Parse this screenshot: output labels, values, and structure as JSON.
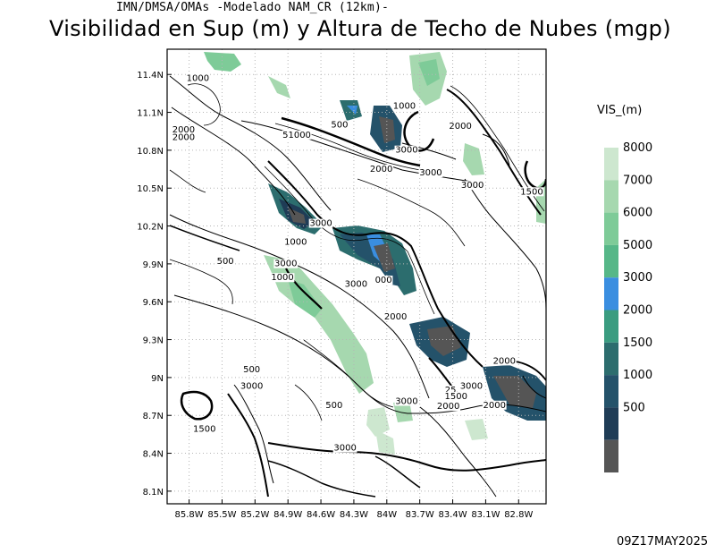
{
  "header": {
    "source_line": "IMN/DMSA/OMAs -Modelado NAM_CR (12km)-",
    "title": "Visibilidad en Sup (m) y Altura de Techo de Nubes (mgp)"
  },
  "legend": {
    "title": "VIS_(m)",
    "levels": [
      {
        "label": "8000",
        "color": "#cde7cf"
      },
      {
        "label": "7000",
        "color": "#a6d8af"
      },
      {
        "label": "6000",
        "color": "#7ecb98"
      },
      {
        "label": "5000",
        "color": "#56b788"
      },
      {
        "label": "3000",
        "color": "#3a8ee0"
      },
      {
        "label": "2000",
        "color": "#3a9c80"
      },
      {
        "label": "1500",
        "color": "#2c6d6e"
      },
      {
        "label": "1000",
        "color": "#24526a"
      },
      {
        "label": "500",
        "color": "#1f3c56"
      },
      {
        "label": "",
        "color": "#555555"
      }
    ]
  },
  "map": {
    "lat_ticks": [
      "11.4N",
      "11.1N",
      "10.8N",
      "10.5N",
      "10.2N",
      "9.9N",
      "9.6N",
      "9.3N",
      "9N",
      "8.7N",
      "8.4N",
      "8.1N"
    ],
    "lon_ticks": [
      "85.8W",
      "85.5W",
      "85.2W",
      "84.9W",
      "84.6W",
      "84.3W",
      "84W",
      "83.7W",
      "83.4W",
      "83.1W",
      "82.8W"
    ],
    "contour_labels": [
      {
        "text": "1000",
        "lon": -85.72,
        "lat": 11.35
      },
      {
        "text": "2000",
        "lon": -85.85,
        "lat": 10.94
      },
      {
        "text": "2000",
        "lon": -85.85,
        "lat": 10.88
      },
      {
        "text": "500",
        "lon": -84.43,
        "lat": 10.98
      },
      {
        "text": "51000",
        "lon": -84.82,
        "lat": 10.9
      },
      {
        "text": "1000",
        "lon": -83.84,
        "lat": 11.13
      },
      {
        "text": "2000",
        "lon": -83.33,
        "lat": 10.97
      },
      {
        "text": "3000",
        "lon": -83.82,
        "lat": 10.78
      },
      {
        "text": "2000",
        "lon": -84.05,
        "lat": 10.63
      },
      {
        "text": "3000",
        "lon": -83.6,
        "lat": 10.6
      },
      {
        "text": "3000",
        "lon": -83.22,
        "lat": 10.5
      },
      {
        "text": "1500",
        "lon": -82.68,
        "lat": 10.45
      },
      {
        "text": "3000",
        "lon": -84.6,
        "lat": 10.2
      },
      {
        "text": "1000",
        "lon": -84.83,
        "lat": 10.05
      },
      {
        "text": "500",
        "lon": -85.47,
        "lat": 9.9
      },
      {
        "text": "3000",
        "lon": -84.92,
        "lat": 9.88
      },
      {
        "text": "1000",
        "lon": -84.95,
        "lat": 9.77
      },
      {
        "text": "3000",
        "lon": -84.28,
        "lat": 9.72
      },
      {
        "text": "000",
        "lon": -84.03,
        "lat": 9.75
      },
      {
        "text": "2000",
        "lon": -83.92,
        "lat": 9.46
      },
      {
        "text": "500",
        "lon": -85.23,
        "lat": 9.04
      },
      {
        "text": "3000",
        "lon": -85.23,
        "lat": 8.91
      },
      {
        "text": "2000",
        "lon": -82.93,
        "lat": 9.11
      },
      {
        "text": "3000",
        "lon": -83.23,
        "lat": 8.91
      },
      {
        "text": "25",
        "lon": -83.42,
        "lat": 8.88
      },
      {
        "text": "1500",
        "lon": -83.37,
        "lat": 8.83
      },
      {
        "text": "3000",
        "lon": -83.82,
        "lat": 8.79
      },
      {
        "text": "2000",
        "lon": -83.44,
        "lat": 8.75
      },
      {
        "text": "2000",
        "lon": -83.02,
        "lat": 8.76
      },
      {
        "text": "500",
        "lon": -84.48,
        "lat": 8.76
      },
      {
        "text": "1500",
        "lon": -85.66,
        "lat": 8.57
      },
      {
        "text": "3000",
        "lon": -84.38,
        "lat": 8.42
      }
    ]
  },
  "footer": {
    "timestamp": "09Z17MAY2025"
  }
}
